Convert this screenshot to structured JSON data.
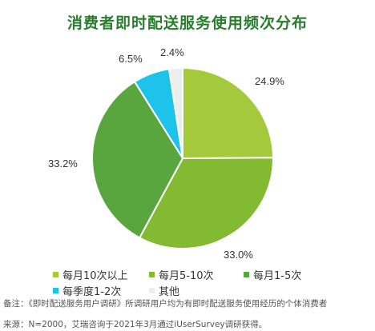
{
  "chart_data": {
    "type": "pie",
    "title": "消费者即时配送服务使用频次分布",
    "slices": [
      {
        "label": "每月10次以上",
        "value": 24.9,
        "display": "24.9%",
        "color": "#a4c93a"
      },
      {
        "label": "每月5-10次",
        "value": 33.0,
        "display": "33.0%",
        "color": "#82bb32"
      },
      {
        "label": "每月1-5次",
        "value": 33.2,
        "display": "33.2%",
        "color": "#5aa63e"
      },
      {
        "label": "每季度1-2次",
        "value": 6.5,
        "display": "6.5%",
        "color": "#1ec3ec"
      },
      {
        "label": "其他",
        "value": 2.4,
        "display": "2.4%",
        "color": "#eceeee"
      }
    ],
    "legend_position": "bottom"
  },
  "notes": {
    "line1": "备注：《即时配送服务用户调研》所调研用户均为有即时配送服务使用经历的个体消费者",
    "line2": "来源：N=2000，艾瑞咨询于2021年3月通过iUserSurvey调研获得。"
  }
}
